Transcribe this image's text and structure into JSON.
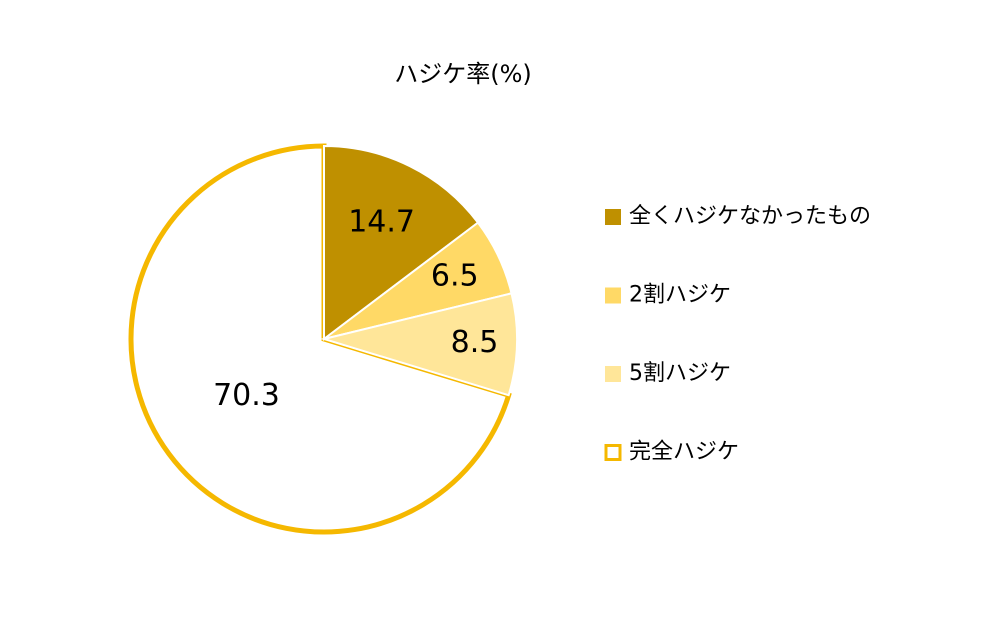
{
  "chart_data": {
    "type": "pie",
    "title": "ハジケ率(%)",
    "categories": [
      "全くハジケなかったもの",
      "2割ハジケ",
      "5割ハジケ",
      "完全ハジケ"
    ],
    "values": [
      14.7,
      6.5,
      8.5,
      70.3
    ],
    "colors": [
      "#BF9000",
      "#FFD966",
      "#FFE699",
      "#FFFFFF"
    ],
    "edge_colors": [
      "#FFFFFF",
      "#FFFFFF",
      "#FFFFFF",
      "#F5B800"
    ],
    "legend": "right"
  }
}
